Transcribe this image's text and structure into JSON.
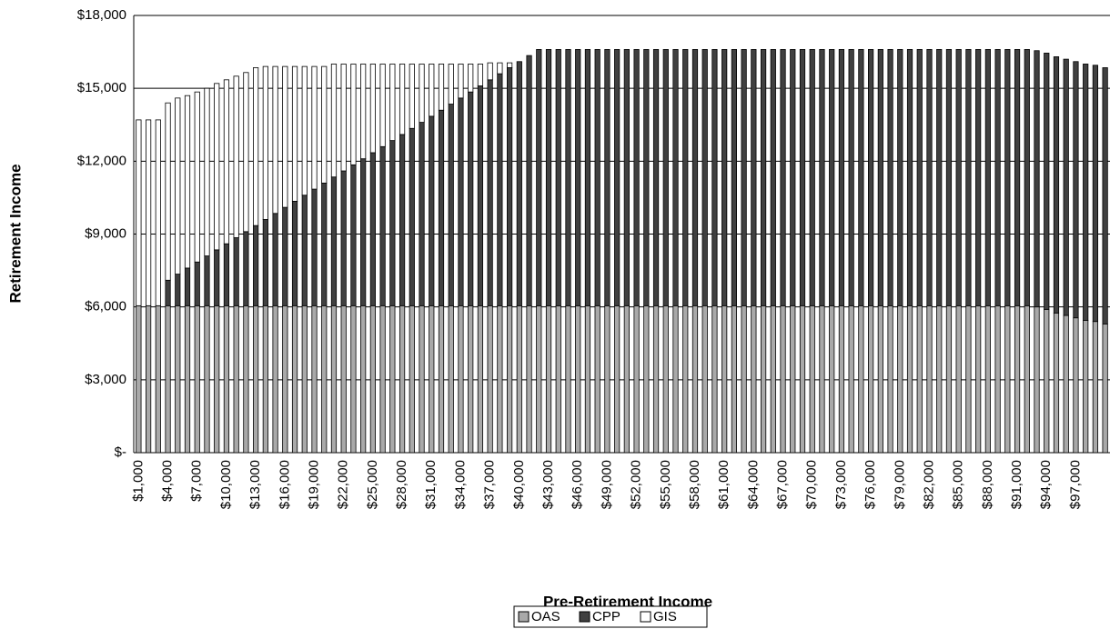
{
  "chart_data": {
    "type": "stacked_bar",
    "x_label": "Pre-Retirement Income",
    "y_label": "Retirement Income",
    "categories": [
      "$1,000",
      null,
      null,
      "$4,000",
      null,
      null,
      "$7,000",
      null,
      null,
      "$10,000",
      null,
      null,
      "$13,000",
      null,
      null,
      "$16,000",
      null,
      null,
      "$19,000",
      null,
      null,
      "$22,000",
      null,
      null,
      "$25,000",
      null,
      null,
      "$28,000",
      null,
      null,
      "$31,000",
      null,
      null,
      "$34,000",
      null,
      null,
      "$37,000",
      null,
      null,
      "$40,000",
      null,
      null,
      "$43,000",
      null,
      null,
      "$46,000",
      null,
      null,
      "$49,000",
      null,
      null,
      "$52,000",
      null,
      null,
      "$55,000",
      null,
      null,
      "$58,000",
      null,
      null,
      "$61,000",
      null,
      null,
      "$64,000",
      null,
      null,
      "$67,000",
      null,
      null,
      "$70,000",
      null,
      null,
      "$73,000",
      null,
      null,
      "$76,000",
      null,
      null,
      "$79,000",
      null,
      null,
      "$82,000",
      null,
      null,
      "$85,000",
      null,
      null,
      "$88,000",
      null,
      null,
      "$91,000",
      null,
      null,
      "$94,000",
      null,
      null,
      "$97,000",
      null,
      null,
      null
    ],
    "series": [
      {
        "name": "OAS",
        "color": "#a9a9a9",
        "values": [
          6050,
          6050,
          6050,
          6050,
          6050,
          6050,
          6050,
          6050,
          6050,
          6050,
          6050,
          6050,
          6050,
          6050,
          6050,
          6050,
          6050,
          6050,
          6050,
          6050,
          6050,
          6050,
          6050,
          6050,
          6050,
          6050,
          6050,
          6050,
          6050,
          6050,
          6050,
          6050,
          6050,
          6050,
          6050,
          6050,
          6050,
          6050,
          6050,
          6050,
          6050,
          6050,
          6050,
          6050,
          6050,
          6050,
          6050,
          6050,
          6050,
          6050,
          6050,
          6050,
          6050,
          6050,
          6050,
          6050,
          6050,
          6050,
          6050,
          6050,
          6050,
          6050,
          6050,
          6050,
          6050,
          6050,
          6050,
          6050,
          6050,
          6050,
          6050,
          6050,
          6050,
          6050,
          6050,
          6050,
          6050,
          6050,
          6050,
          6050,
          6050,
          6050,
          6050,
          6050,
          6050,
          6050,
          6050,
          6050,
          6050,
          6050,
          6050,
          6050,
          6000,
          5900,
          5750,
          5650,
          5550,
          5450,
          5400,
          5300
        ]
      },
      {
        "name": "CPP",
        "color": "#404040",
        "values": [
          0,
          0,
          0,
          1050,
          1300,
          1550,
          1800,
          2050,
          2300,
          2550,
          2800,
          3050,
          3300,
          3550,
          3800,
          4050,
          4300,
          4550,
          4800,
          5050,
          5300,
          5550,
          5800,
          6050,
          6300,
          6550,
          6800,
          7050,
          7300,
          7550,
          7800,
          8050,
          8300,
          8550,
          8800,
          9050,
          9300,
          9550,
          9800,
          10050,
          10300,
          10550,
          10550,
          10550,
          10550,
          10550,
          10550,
          10550,
          10550,
          10550,
          10550,
          10550,
          10550,
          10550,
          10550,
          10550,
          10550,
          10550,
          10550,
          10550,
          10550,
          10550,
          10550,
          10550,
          10550,
          10550,
          10550,
          10550,
          10550,
          10550,
          10550,
          10550,
          10550,
          10550,
          10550,
          10550,
          10550,
          10550,
          10550,
          10550,
          10550,
          10550,
          10550,
          10550,
          10550,
          10550,
          10550,
          10550,
          10550,
          10550,
          10550,
          10550,
          10550,
          10550,
          10550,
          10550,
          10550,
          10550,
          10550,
          10550
        ]
      },
      {
        "name": "GIS",
        "color": "#ffffff",
        "values": [
          7650,
          7650,
          7650,
          7300,
          7250,
          7100,
          7000,
          6900,
          6850,
          6750,
          6650,
          6550,
          6500,
          6300,
          6050,
          5800,
          5550,
          5300,
          5050,
          4800,
          4650,
          4400,
          4150,
          3900,
          3650,
          3400,
          3150,
          2900,
          2650,
          2400,
          2150,
          1900,
          1650,
          1400,
          1150,
          900,
          700,
          450,
          200,
          0,
          0,
          0,
          0,
          0,
          0,
          0,
          0,
          0,
          0,
          0,
          0,
          0,
          0,
          0,
          0,
          0,
          0,
          0,
          0,
          0,
          0,
          0,
          0,
          0,
          0,
          0,
          0,
          0,
          0,
          0,
          0,
          0,
          0,
          0,
          0,
          0,
          0,
          0,
          0,
          0,
          0,
          0,
          0,
          0,
          0,
          0,
          0,
          0,
          0,
          0,
          0,
          0,
          0,
          0,
          0,
          0,
          0,
          0,
          0,
          0
        ]
      }
    ],
    "ylim": [
      0,
      18000
    ],
    "yticks": [
      {
        "value": 0,
        "label": "$-"
      },
      {
        "value": 3000,
        "label": "$3,000"
      },
      {
        "value": 6000,
        "label": "$6,000"
      },
      {
        "value": 9000,
        "label": "$9,000"
      },
      {
        "value": 12000,
        "label": "$12,000"
      },
      {
        "value": 15000,
        "label": "$15,000"
      },
      {
        "value": 18000,
        "label": "$18,000"
      }
    ],
    "grid": true,
    "legend": "bottom"
  }
}
